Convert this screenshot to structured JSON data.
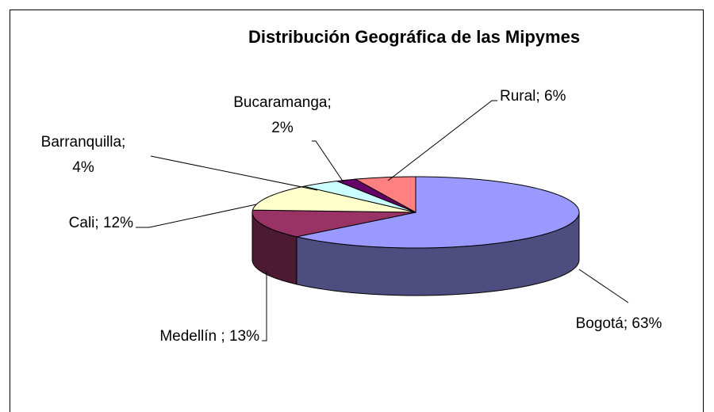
{
  "chart_data": {
    "type": "pie3d",
    "title": "Distribución Geográfica de las Mipymes",
    "values": [
      63,
      13,
      12,
      4,
      2,
      6
    ],
    "value_labels": [
      "Bogotá; 63%",
      "Medellín ; 13%",
      "Cali; 12%",
      "Barranquilla;\n4%",
      "Bucaramanga;\n2%",
      "Rural; 6%"
    ],
    "colors": [
      "#9999ff",
      "#993366",
      "#ffffcc",
      "#ccffff",
      "#660066",
      "#ff8080"
    ]
  }
}
